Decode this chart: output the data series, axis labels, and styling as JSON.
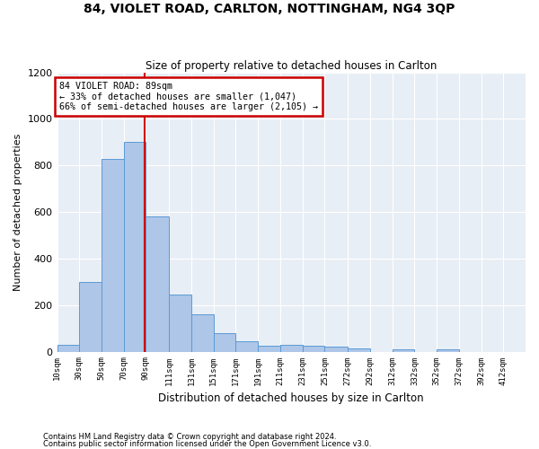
{
  "title1": "84, VIOLET ROAD, CARLTON, NOTTINGHAM, NG4 3QP",
  "title2": "Size of property relative to detached houses in Carlton",
  "xlabel": "Distribution of detached houses by size in Carlton",
  "ylabel": "Number of detached properties",
  "footnote1": "Contains HM Land Registry data © Crown copyright and database right 2024.",
  "footnote2": "Contains public sector information licensed under the Open Government Licence v3.0.",
  "annotation_line1": "84 VIOLET ROAD: 89sqm",
  "annotation_line2": "← 33% of detached houses are smaller (1,047)",
  "annotation_line3": "66% of semi-detached houses are larger (2,105) →",
  "property_size": 89,
  "bar_left_edges": [
    10,
    30,
    50,
    70,
    90,
    111,
    131,
    151,
    171,
    191,
    211,
    231,
    251,
    272,
    292,
    312,
    332,
    352,
    372,
    392
  ],
  "bar_widths": [
    20,
    20,
    20,
    20,
    21,
    20,
    20,
    20,
    20,
    20,
    20,
    20,
    21,
    20,
    20,
    20,
    20,
    20,
    20,
    20
  ],
  "bar_heights": [
    30,
    300,
    830,
    900,
    580,
    245,
    160,
    80,
    45,
    25,
    30,
    25,
    20,
    15,
    0,
    10,
    0,
    10,
    0,
    0
  ],
  "bar_color": "#aec6e8",
  "bar_edge_color": "#5b9bd5",
  "vertical_line_color": "#cc0000",
  "annotation_box_color": "#cc0000",
  "background_color": "#e8eef5",
  "ylim": [
    0,
    1200
  ],
  "yticks": [
    0,
    200,
    400,
    600,
    800,
    1000,
    1200
  ],
  "tick_labels": [
    "10sqm",
    "30sqm",
    "50sqm",
    "70sqm",
    "90sqm",
    "111sqm",
    "131sqm",
    "151sqm",
    "171sqm",
    "191sqm",
    "211sqm",
    "231sqm",
    "251sqm",
    "272sqm",
    "292sqm",
    "312sqm",
    "332sqm",
    "352sqm",
    "372sqm",
    "392sqm",
    "412sqm"
  ]
}
